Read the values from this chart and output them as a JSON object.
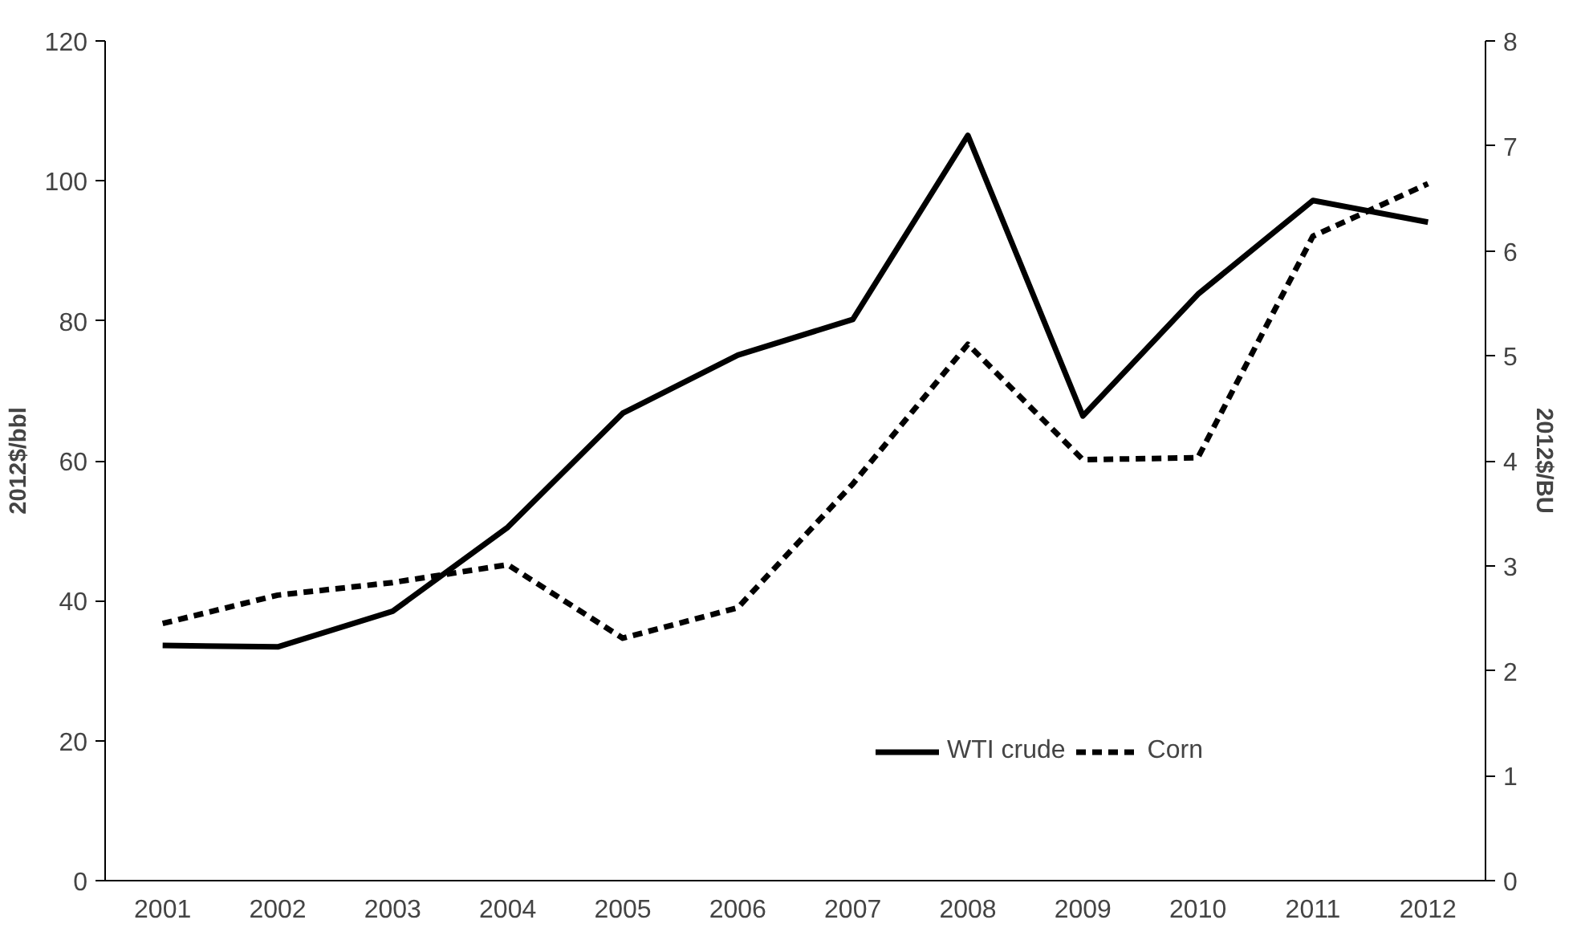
{
  "chart_data": {
    "type": "line",
    "categories": [
      "2001",
      "2002",
      "2003",
      "2004",
      "2005",
      "2006",
      "2007",
      "2008",
      "2009",
      "2010",
      "2011",
      "2012"
    ],
    "ylabel": "2012$/bbl",
    "y2label": "2012$/BU",
    "ylim": [
      0,
      120
    ],
    "yticks": [
      0,
      20,
      40,
      60,
      80,
      100,
      120
    ],
    "y2lim": [
      0,
      8
    ],
    "y2ticks": [
      0,
      1,
      2,
      3,
      4,
      5,
      6,
      7,
      8
    ],
    "grid": false,
    "legend": "bottom right",
    "marker": "none",
    "series": [
      {
        "name": "WTI crude",
        "color": "#000000",
        "line_style": "solid",
        "values": [
          33.6,
          33.4,
          38.5,
          50.5,
          66.8,
          75.1,
          80.2,
          106.5,
          66.4,
          83.8,
          97.2,
          94.1
        ]
      },
      {
        "name": "Corn",
        "color": "#000000",
        "line_style": "dashed",
        "axis": "y2",
        "values": [
          2.45,
          2.72,
          2.84,
          3.01,
          2.31,
          2.6,
          3.78,
          5.11,
          4.01,
          4.03,
          6.14,
          6.64
        ]
      }
    ]
  }
}
